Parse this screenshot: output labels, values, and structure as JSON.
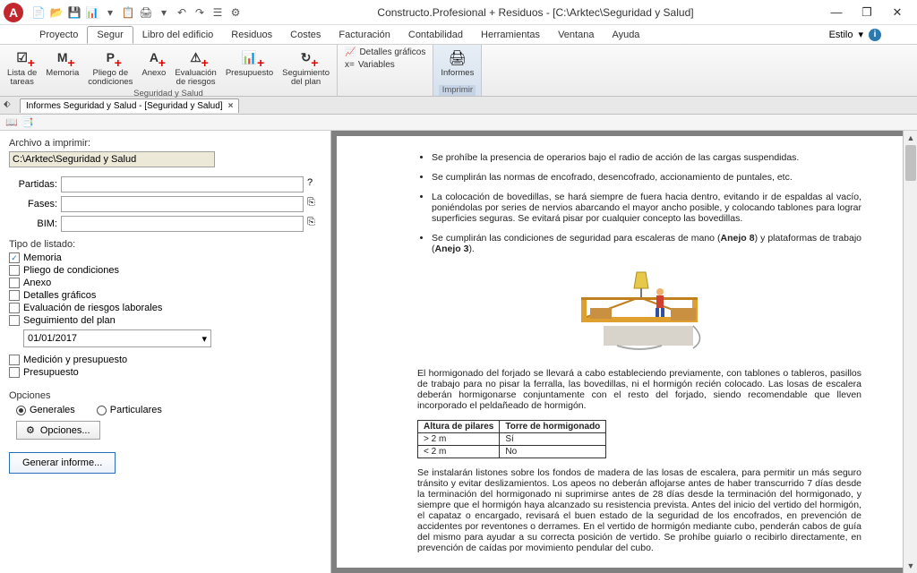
{
  "app": {
    "title": "Constructo.Profesional + Residuos - [C:\\Arktec\\Seguridad y Salud]",
    "logo_letter": "A",
    "logo_bg": "#c1272d"
  },
  "window_controls": {
    "min": "—",
    "max": "❐",
    "close": "✕"
  },
  "qat_icons": [
    "📄",
    "📂",
    "💾",
    "📊",
    "▾",
    "📋",
    "🖨",
    "▾",
    "↶",
    "↷",
    "☰",
    "⚙"
  ],
  "menu": {
    "items": [
      "Proyecto",
      "Segur",
      "Libro del edificio",
      "Residuos",
      "Costes",
      "Facturación",
      "Contabilidad",
      "Herramientas",
      "Ventana",
      "Ayuda"
    ],
    "active_index": 1,
    "style_label": "Estilo",
    "style_arrow": "▾"
  },
  "ribbon": {
    "group1_label": "Seguridad y Salud",
    "buttons": [
      {
        "icon_text": "☑",
        "sub": "+",
        "l1": "Lista de",
        "l2": "tareas"
      },
      {
        "icon_text": "M",
        "sub": "+",
        "l1": "Memoria",
        "l2": ""
      },
      {
        "icon_text": "P",
        "sub": "+",
        "l1": "Pliego de",
        "l2": "condiciones"
      },
      {
        "icon_text": "A",
        "sub": "+",
        "l1": "Anexo",
        "l2": ""
      },
      {
        "icon_text": "⚠",
        "sub": "+",
        "l1": "Evaluación",
        "l2": "de riesgos"
      },
      {
        "icon_text": "📊",
        "sub": "+",
        "l1": "Presupuesto",
        "l2": ""
      },
      {
        "icon_text": "↻",
        "sub": "+",
        "l1": "Seguimiento",
        "l2": "del plan"
      }
    ],
    "small_items": [
      {
        "icon": "📈",
        "label": "Detalles gráficos"
      },
      {
        "icon": "x=",
        "label": "Variables"
      }
    ],
    "print_label": "Imprimir",
    "print_btn": "Informes",
    "print_icon": "🖨"
  },
  "doc_tab": {
    "title": "Informes Seguridad y Salud - [Seguridad y Salud]",
    "close": "×"
  },
  "strip_icons": [
    "📖",
    "📑"
  ],
  "side": {
    "archivo_label": "Archivo a imprimir:",
    "archivo_value": "C:\\Arktec\\Seguridad y Salud",
    "rows": [
      {
        "label": "Partidas:",
        "btn": "?"
      },
      {
        "label": "Fases:",
        "btn": "⎘"
      },
      {
        "label": "BIM:",
        "btn": "⎘"
      }
    ],
    "tipo_label": "Tipo de listado:",
    "checks": [
      {
        "label": "Memoria",
        "checked": true
      },
      {
        "label": "Pliego de condiciones",
        "checked": false
      },
      {
        "label": "Anexo",
        "checked": false
      },
      {
        "label": "Detalles gráficos",
        "checked": false
      },
      {
        "label": "Evaluación de riesgos laborales",
        "checked": false
      },
      {
        "label": "Seguimiento del plan",
        "checked": false
      }
    ],
    "date": "01/01/2017",
    "checks2": [
      {
        "label": "Medición y presupuesto",
        "checked": false
      },
      {
        "label": "Presupuesto",
        "checked": false
      }
    ],
    "opciones_label": "Opciones",
    "radios": [
      {
        "label": "Generales",
        "on": true
      },
      {
        "label": "Particulares",
        "on": false
      }
    ],
    "opciones_btn": "Opciones...",
    "opciones_icon": "⚙",
    "generar_btn": "Generar informe..."
  },
  "doc": {
    "bullets": [
      "Se prohíbe la presencia de operarios bajo el radio de acción de las cargas suspendidas.",
      "Se cumplirán las normas de encofrado, desencofrado, accionamiento de puntales, etc.",
      "La colocación de bovedillas, se hará siempre de fuera hacia dentro, evitando ir de espaldas al vacío, poniéndolas por series de nervios abarcando el mayor ancho posible, y colocando tablones para lograr superficies seguras. Se evitará pisar por cualquier concepto las bovedillas.",
      "Se cumplirán las condiciones de seguridad para escaleras de mano (<b>Anejo 8</b>) y plataformas de trabajo (<b>Anejo 3</b>)."
    ],
    "para1": "El hormigonado del forjado se llevará a cabo estableciendo previamente, con tablones o tableros, pasillos de trabajo para no pisar la ferralla, las bovedillas, ni el hormigón recién colocado. Las losas de escalera deberán hormigonarse conjuntamente con el resto del forjado, siendo recomendable que lleven incorporado el peldañeado de hormigón.",
    "table": {
      "headers": [
        "Altura de pilares",
        "Torre de hormigonado"
      ],
      "rows": [
        [
          "> 2 m",
          "Sí"
        ],
        [
          "< 2 m",
          "No"
        ]
      ]
    },
    "para2": "Se instalarán listones sobre los fondos de madera de las losas de escalera, para permitir un más seguro tránsito y evitar deslizamientos. Los apeos no deberán aflojarse antes de haber transcurrido 7 días desde la terminación del hormigonado ni suprimirse antes de 28 días desde la terminación del hormigonado, y siempre que el hormigón haya alcanzado su resistencia prevista. Antes del inicio del vertido del hormigón, el capataz o encargado, revisará el buen estado de la seguridad de los encofrados, en prevención de accidentes por reventones o derrames. En el vertido de hormigón mediante cubo, penderán cabos de guía del mismo para ayudar a su correcta posición de vertido. Se prohíbe guiarlo o recibirlo directamente, en prevención de caídas por movimiento pendular del cubo."
  }
}
